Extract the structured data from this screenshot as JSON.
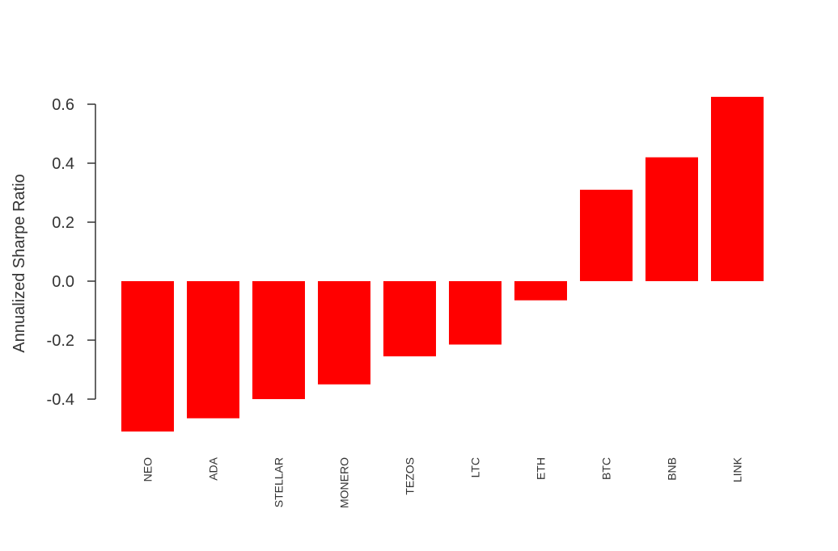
{
  "chart_data": {
    "type": "bar",
    "title": "",
    "xlabel": "",
    "ylabel": "Annualized Sharpe Ratio",
    "categories": [
      "NEO",
      "ADA",
      "STELLAR",
      "MONERO",
      "TEZOS",
      "LTC",
      "ETH",
      "BTC",
      "BNB",
      "LINK"
    ],
    "values": [
      -0.51,
      -0.465,
      -0.4,
      -0.35,
      -0.255,
      -0.215,
      -0.065,
      0.31,
      0.42,
      0.625
    ],
    "ylim": [
      -0.51,
      0.625
    ],
    "yticks": [
      -0.4,
      -0.2,
      0.0,
      0.2,
      0.4,
      0.6
    ],
    "ytick_labels": [
      "-0.4",
      "-0.2",
      "0.0",
      "0.2",
      "0.4",
      "0.6"
    ],
    "bar_color": "#ff0000",
    "grid": false,
    "legend": "none"
  }
}
